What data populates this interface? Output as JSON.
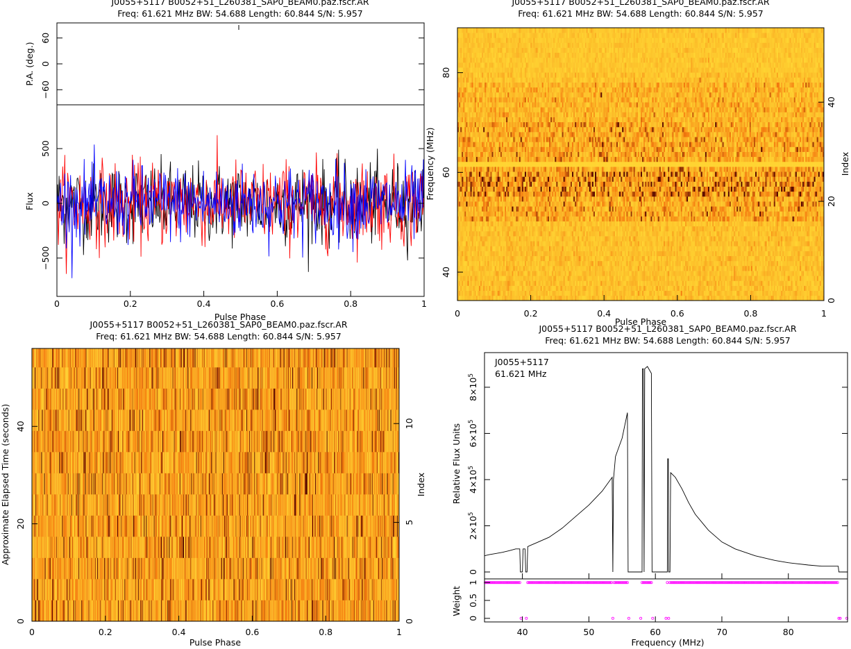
{
  "header_line1": "J0055+5117 B0052+51_L260381_SAP0_BEAM0.paz.fscr.AR",
  "header_line2": "Freq: 61.621 MHz BW: 54.688 Length: 60.844 S/N: 5.957",
  "colors": {
    "heat_low": "#ffd733",
    "heat_mid": "#f57c10",
    "heat_high": "#5a0a00",
    "stokes_I": "#000000",
    "stokes_L": "#ff0000",
    "stokes_V": "#0000ff",
    "weight_marker": "#ff00ff"
  },
  "chart_data": [
    {
      "panel": "pulse-profile",
      "type": "line",
      "title": "J0055+5117 B0052+51_L260381_SAP0_BEAM0.paz.fscr.AR",
      "subtitle": "Freq: 61.621 MHz BW: 54.688 Length: 60.844 S/N: 5.957",
      "xlabel": "Pulse Phase",
      "pa_ylabel": "P.A. (deg.)",
      "pa_yticks": [
        "60",
        "0",
        "−60"
      ],
      "pa_ylim": [
        -95,
        95
      ],
      "ylabel": "Flux",
      "yticks": [
        "500",
        "0",
        "−500"
      ],
      "ylim": [
        -850,
        900
      ],
      "xlim": [
        0,
        1
      ],
      "xticks": [
        "0",
        "0.2",
        "0.4",
        "0.6",
        "0.8",
        "1"
      ],
      "series": [
        {
          "values_note": "noise",
          "bins": 512,
          "sigma": 190
        },
        {
          "bins": 512,
          "sigma": 180
        },
        {
          "bins": 512,
          "sigma": 170
        }
      ]
    },
    {
      "panel": "phase-frequency",
      "type": "heatmap",
      "xlabel": "Pulse Phase",
      "ylabel": "Frequency (MHz)",
      "ylabel_right": "Index",
      "xlim": [
        0,
        1
      ],
      "ylim": [
        34.3,
        89
      ],
      "right_ylim": [
        0,
        55
      ],
      "xticks": [
        "0",
        "0.2",
        "0.4",
        "0.6",
        "0.8",
        "1"
      ],
      "yticks": [
        "40",
        "60",
        "80"
      ],
      "right_yticks": [
        "0",
        "20",
        "40"
      ],
      "channels": 55,
      "phase_bins": 256
    },
    {
      "panel": "phase-time",
      "type": "heatmap",
      "title": "J0055+5117 B0052+51_L260381_SAP0_BEAM0.paz.fscr.AR",
      "subtitle": "Freq: 61.621 MHz BW: 54.688 Length: 60.844 S/N: 5.957",
      "xlabel": "Pulse Phase",
      "ylabel": "Approximate Elapsed Time (seconds)",
      "ylabel_right": "Index",
      "xlim": [
        0,
        1
      ],
      "ylim": [
        0,
        56
      ],
      "right_ylim": [
        0,
        13.8
      ],
      "xticks": [
        "0",
        "0.2",
        "0.4",
        "0.6",
        "0.8",
        "1"
      ],
      "yticks": [
        "0",
        "20",
        "40"
      ],
      "right_yticks": [
        "0",
        "5",
        "10"
      ],
      "subints": 14,
      "phase_bins": 512
    },
    {
      "panel": "bandpass",
      "type": "line",
      "title": "J0055+5117 B0052+51_L260381_SAP0_BEAM0.paz.fscr.AR",
      "subtitle": "Freq: 61.621 MHz BW: 54.688 Length: 60.844 S/N: 5.957",
      "annotation_line1": "J0055+5117",
      "annotation_line2": "61.621 MHz",
      "xlabel": "Frequency (MHz)",
      "ylabel": "Relative Flux Units",
      "weight_ylabel": "Weight",
      "xlim": [
        34.3,
        88.9
      ],
      "ylim": [
        -30000,
        950000
      ],
      "weight_ylim": [
        -0.1,
        1.1
      ],
      "xticks": [
        "40",
        "50",
        "60",
        "70",
        "80"
      ],
      "yticks_base": [
        "0",
        "2×10",
        "4×10",
        "6×10",
        "8×10"
      ],
      "yticks_exp": "5",
      "weight_yticks": [
        "0",
        "0.5",
        "1"
      ],
      "points": [
        [
          34.3,
          70000
        ],
        [
          35,
          75000
        ],
        [
          36,
          80000
        ],
        [
          37,
          85000
        ],
        [
          38,
          92000
        ],
        [
          39,
          100000
        ],
        [
          39.6,
          100000
        ],
        [
          39.7,
          0
        ],
        [
          40,
          0
        ],
        [
          40.1,
          100000
        ],
        [
          40.4,
          100000
        ],
        [
          40.5,
          0
        ],
        [
          40.7,
          0
        ],
        [
          40.8,
          110000
        ],
        [
          42,
          125000
        ],
        [
          44,
          150000
        ],
        [
          46,
          190000
        ],
        [
          48,
          240000
        ],
        [
          50,
          290000
        ],
        [
          52,
          350000
        ],
        [
          53.5,
          410000
        ],
        [
          53.6,
          0
        ],
        [
          53.7,
          400000
        ],
        [
          54,
          500000
        ],
        [
          55,
          580000
        ],
        [
          55.8,
          690000
        ],
        [
          55.9,
          0
        ],
        [
          58,
          0
        ],
        [
          58.05,
          880000
        ],
        [
          58.2,
          880000
        ],
        [
          58.3,
          0
        ],
        [
          58.4,
          880000
        ],
        [
          58.8,
          890000
        ],
        [
          59.4,
          860000
        ],
        [
          59.5,
          0
        ],
        [
          61.8,
          0
        ],
        [
          61.85,
          490000
        ],
        [
          61.95,
          490000
        ],
        [
          62.0,
          0
        ],
        [
          62.2,
          0
        ],
        [
          62.3,
          430000
        ],
        [
          63,
          410000
        ],
        [
          64,
          360000
        ],
        [
          65,
          300000
        ],
        [
          66,
          250000
        ],
        [
          68,
          180000
        ],
        [
          70,
          130000
        ],
        [
          72,
          100000
        ],
        [
          75,
          70000
        ],
        [
          78,
          50000
        ],
        [
          80,
          40000
        ],
        [
          83,
          30000
        ],
        [
          85,
          25000
        ],
        [
          87.5,
          25000
        ],
        [
          87.6,
          0
        ],
        [
          88.9,
          0
        ]
      ],
      "zero_weight_ranges": [
        [
          39.7,
          40.7
        ],
        [
          53.5,
          53.7
        ],
        [
          55.9,
          58.0
        ],
        [
          58.3,
          58.4
        ],
        [
          59.5,
          61.8
        ],
        [
          62.0,
          62.2
        ],
        [
          87.6,
          88.9
        ]
      ]
    }
  ]
}
